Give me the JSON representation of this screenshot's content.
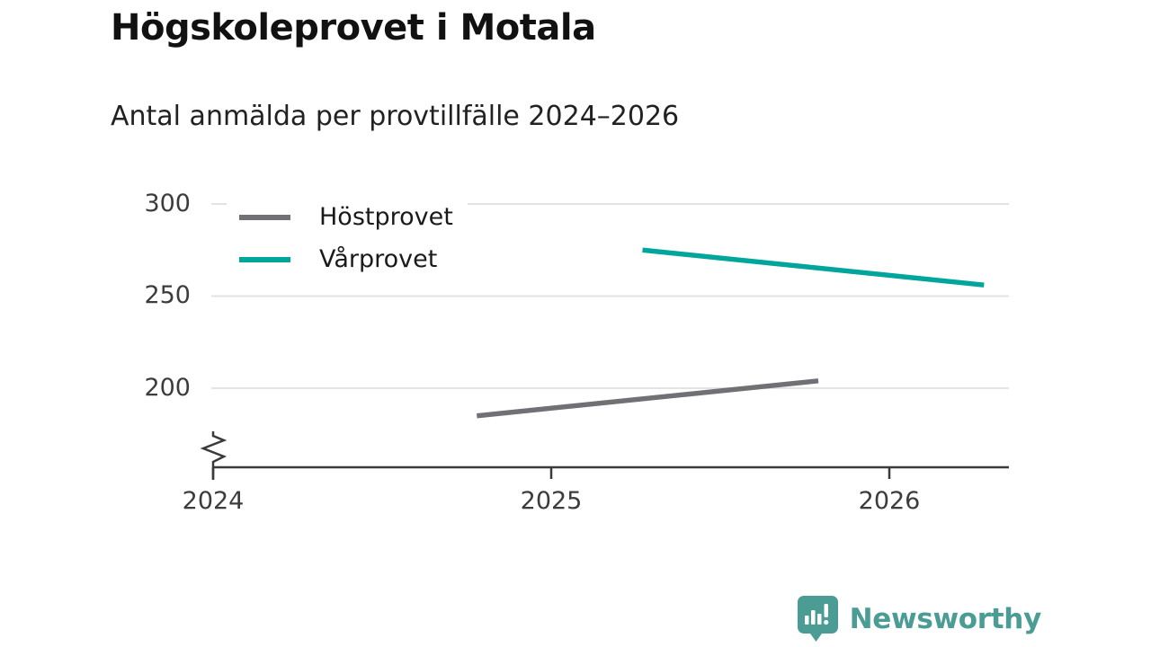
{
  "header": {
    "title": "Högskoleprovet i Motala",
    "subtitle": "Antal anmälda per provtillfälle 2024–2026"
  },
  "chart_data": {
    "type": "line",
    "title": "Högskoleprovet i Motala",
    "subtitle": "Antal anmälda per provtillfälle 2024–2026",
    "xlabel": "",
    "ylabel": "",
    "x_ticks": [
      2024,
      2025,
      2026
    ],
    "y_ticks": [
      300,
      250,
      200
    ],
    "ylim": [
      157,
      308
    ],
    "xlim": [
      2024,
      2026.35
    ],
    "y_axis_break": true,
    "grid": "horizontal-only",
    "legend_position": "top-left-inside",
    "series": [
      {
        "name": "Höstprovet",
        "color": "#717175",
        "points": [
          {
            "x": 2024.78,
            "y": 185
          },
          {
            "x": 2025.79,
            "y": 204
          }
        ]
      },
      {
        "name": "Vårprovet",
        "color": "#00a69b",
        "points": [
          {
            "x": 2025.27,
            "y": 275
          },
          {
            "x": 2026.28,
            "y": 256
          }
        ]
      }
    ],
    "axis_color": "#3a3a3a",
    "gridline_color": "#e3e3e3"
  },
  "footer": {
    "brand": "Newsworthy",
    "brand_color": "#4a9c95"
  }
}
